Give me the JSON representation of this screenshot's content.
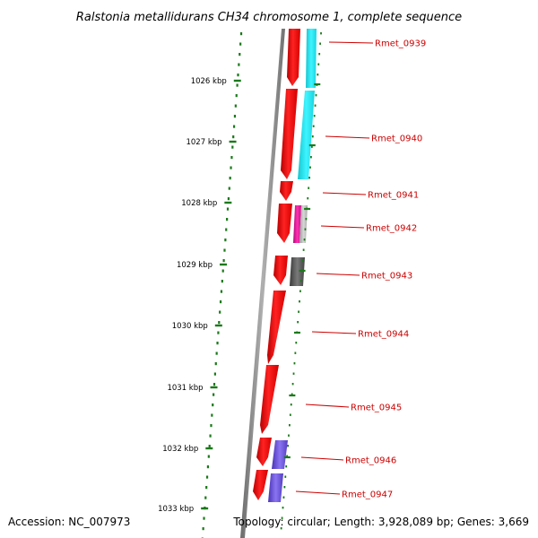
{
  "title": "Ralstonia metallidurans CH34 chromosome 1, complete sequence",
  "footer": {
    "accession": "Accession: NC_007973",
    "topology": "Topology: circular; Length: 3,928,089 bp; Genes: 3,669"
  },
  "kbp_ticks": [
    "1026 kbp",
    "1027 kbp",
    "1028 kbp",
    "1029 kbp",
    "1030 kbp",
    "1031 kbp",
    "1032 kbp",
    "1033 kbp"
  ],
  "gene_labels": [
    "Rmet_0939",
    "Rmet_0940",
    "Rmet_0941",
    "Rmet_0942",
    "Rmet_0943",
    "Rmet_0944",
    "Rmet_0945",
    "Rmet_0946",
    "Rmet_0947"
  ],
  "colors": {
    "cds": "#ff1111",
    "backbone": "#888888",
    "tick": "#1a7a1a",
    "label": "#cc0000",
    "cyan": "#22e6f0",
    "magenta": "#e0189a",
    "grey_light": "#bcbcbc",
    "grey_dark": "#555555",
    "purple": "#6a52d8"
  }
}
